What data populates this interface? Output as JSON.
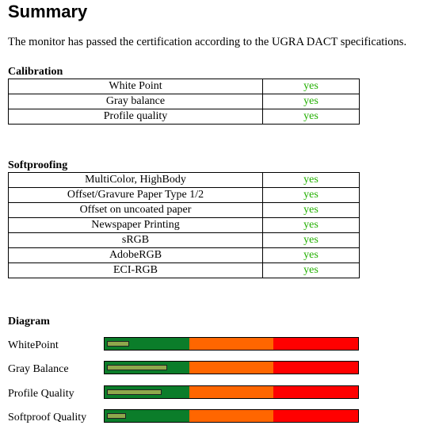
{
  "title": "Summary",
  "intro": "The monitor has passed the certification according to the UGRA DACT specifications.",
  "calibration": {
    "heading": "Calibration",
    "rows": [
      [
        "White Point",
        "yes"
      ],
      [
        "Gray balance",
        "yes"
      ],
      [
        "Profile quality",
        "yes"
      ]
    ]
  },
  "softproofing": {
    "heading": "Softproofing",
    "rows": [
      [
        "MultiColor, HighBody",
        "yes"
      ],
      [
        "Offset/Gravure Paper Type 1/2",
        "yes"
      ],
      [
        "Offset on uncoated paper",
        "yes"
      ],
      [
        "Newspaper Printing",
        "yes"
      ],
      [
        "sRGB",
        "yes"
      ],
      [
        "AdobeRGB",
        "yes"
      ],
      [
        "ECI-RGB",
        "yes"
      ]
    ]
  },
  "diagram": {
    "heading": "Diagram",
    "xlim": [
      0,
      100
    ],
    "rows": [
      {
        "label": "WhitePoint",
        "value": 8
      },
      {
        "label": "Gray Balance",
        "value": 23
      },
      {
        "label": "Profile Quality",
        "value": 21
      },
      {
        "label": "Softproof Quality",
        "value": 7
      }
    ]
  }
}
